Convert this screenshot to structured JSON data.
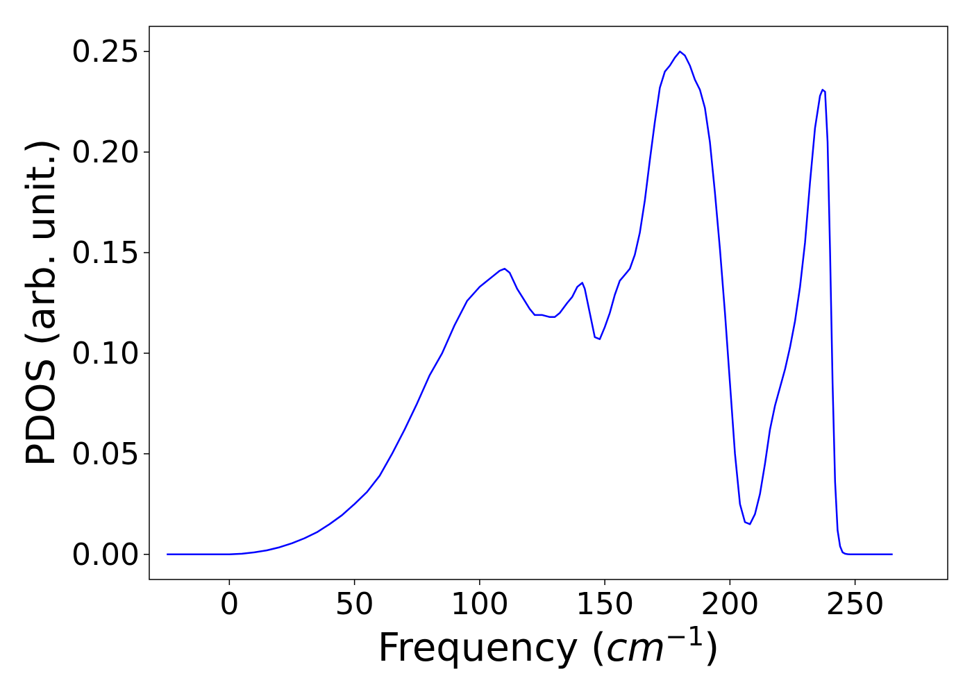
{
  "chart_data": {
    "type": "line",
    "title": "",
    "xlabel_prefix": "Frequency (",
    "xlabel_math": "cm",
    "xlabel_exponent": "−1",
    "xlabel_suffix": ")",
    "ylabel": "PDOS (arb. unit.)",
    "xlim": [
      -32,
      287
    ],
    "ylim": [
      -0.0125,
      0.2625
    ],
    "xticks": [
      0,
      50,
      100,
      150,
      200,
      250
    ],
    "xtick_labels": [
      "0",
      "50",
      "100",
      "150",
      "200",
      "250"
    ],
    "yticks": [
      0.0,
      0.05,
      0.1,
      0.15,
      0.2,
      0.25
    ],
    "ytick_labels": [
      "0.00",
      "0.05",
      "0.10",
      "0.15",
      "0.20",
      "0.25"
    ],
    "grid": false,
    "legend": "none",
    "series": [
      {
        "color": "#0000ff",
        "x": [
          -25,
          -15,
          -5,
          0,
          5,
          10,
          15,
          20,
          25,
          30,
          35,
          40,
          45,
          50,
          55,
          60,
          65,
          70,
          75,
          80,
          85,
          90,
          95,
          100,
          102,
          105,
          108,
          110,
          112,
          115,
          118,
          120,
          122,
          125,
          128,
          130,
          132,
          135,
          137,
          139,
          141,
          142,
          144,
          146,
          148,
          150,
          152,
          154,
          156,
          158,
          160,
          162,
          164,
          166,
          168,
          170,
          172,
          174,
          176,
          178,
          180,
          182,
          184,
          186,
          188,
          190,
          192,
          194,
          196,
          198,
          200,
          202,
          204,
          206,
          208,
          210,
          212,
          214,
          216,
          218,
          220,
          222,
          224,
          226,
          228,
          230,
          232,
          234,
          236,
          237,
          238,
          239,
          240,
          241,
          242,
          243,
          244,
          245,
          246,
          247,
          248,
          250,
          255,
          265
        ],
        "y": [
          0.0,
          0.0,
          0.0,
          0.0,
          0.0003,
          0.001,
          0.002,
          0.0035,
          0.0055,
          0.008,
          0.011,
          0.015,
          0.0195,
          0.025,
          0.031,
          0.039,
          0.05,
          0.062,
          0.075,
          0.089,
          0.1,
          0.114,
          0.126,
          0.133,
          0.135,
          0.138,
          0.141,
          0.142,
          0.14,
          0.132,
          0.126,
          0.122,
          0.119,
          0.119,
          0.118,
          0.118,
          0.12,
          0.125,
          0.128,
          0.133,
          0.135,
          0.132,
          0.12,
          0.108,
          0.107,
          0.113,
          0.12,
          0.129,
          0.136,
          0.139,
          0.142,
          0.149,
          0.16,
          0.176,
          0.196,
          0.215,
          0.232,
          0.24,
          0.243,
          0.247,
          0.25,
          0.248,
          0.243,
          0.236,
          0.231,
          0.222,
          0.205,
          0.18,
          0.152,
          0.12,
          0.085,
          0.05,
          0.025,
          0.016,
          0.015,
          0.02,
          0.03,
          0.045,
          0.062,
          0.074,
          0.083,
          0.092,
          0.103,
          0.116,
          0.133,
          0.155,
          0.185,
          0.212,
          0.228,
          0.231,
          0.23,
          0.205,
          0.15,
          0.085,
          0.036,
          0.012,
          0.004,
          0.001,
          0.0003,
          0.0001,
          0.0,
          0.0,
          0.0,
          0.0
        ]
      }
    ]
  }
}
